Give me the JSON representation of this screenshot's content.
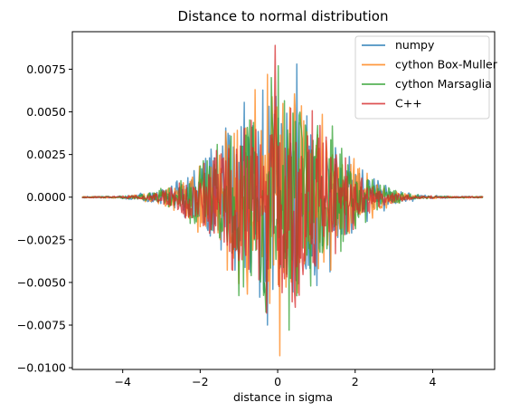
{
  "chart_data": {
    "type": "line",
    "title": "Distance to normal distribution",
    "xlabel": "distance in sigma",
    "ylabel": "",
    "xlim": [
      -5.3,
      5.6
    ],
    "ylim": [
      -0.0101,
      0.0097
    ],
    "x_ticks": [
      -4,
      -2,
      0,
      2,
      4
    ],
    "x_tick_labels": [
      "−4",
      "−2",
      "0",
      "2",
      "4"
    ],
    "y_ticks": [
      -0.01,
      -0.0075,
      -0.005,
      -0.0025,
      0.0,
      0.0025,
      0.005,
      0.0075
    ],
    "y_tick_labels": [
      "−0.0100",
      "−0.0075",
      "−0.0050",
      "−0.0025",
      "0.0000",
      "0.0025",
      "0.0050",
      "0.0075"
    ],
    "grid": false,
    "legend_position": "top-right",
    "x_range": [
      -5.05,
      5.3
    ],
    "series": [
      {
        "name": "numpy",
        "color": "#1f77b4",
        "peak_max": 0.0078,
        "peak_min": -0.0075,
        "spread": 1.35,
        "seed": 11
      },
      {
        "name": "cython Box-Muller",
        "color": "#ff7f0e",
        "peak_max": 0.0072,
        "peak_min": -0.0093,
        "spread": 1.3,
        "seed": 23
      },
      {
        "name": "cython Marsaglia",
        "color": "#2ca02c",
        "peak_max": 0.0077,
        "peak_min": -0.0078,
        "spread": 1.3,
        "seed": 37
      },
      {
        "name": "C++",
        "color": "#d62728",
        "peak_max": 0.0089,
        "peak_min": -0.0068,
        "spread": 1.25,
        "seed": 51
      }
    ]
  }
}
